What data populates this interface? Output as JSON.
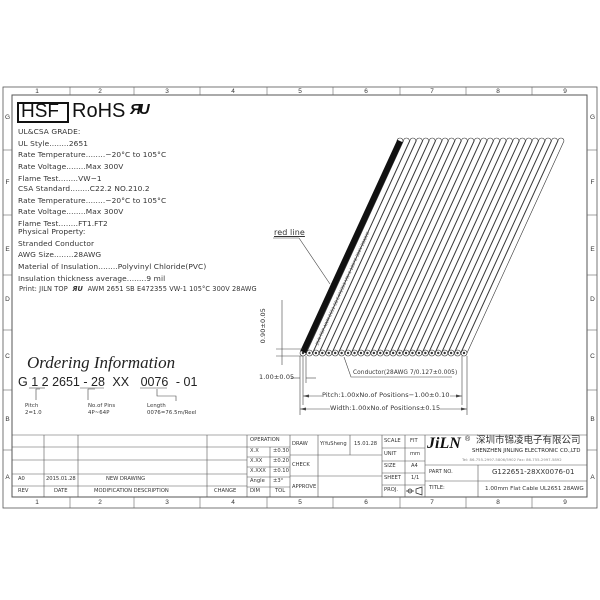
{
  "grid": {
    "columns": [
      "1",
      "2",
      "3",
      "4",
      "5",
      "6",
      "7",
      "8",
      "9"
    ],
    "rows": [
      "G",
      "F",
      "E",
      "D",
      "C",
      "B",
      "A"
    ]
  },
  "header": {
    "hsf": "HSF",
    "rohs": "RoHS",
    "ul_mark": "UL recognized component mark"
  },
  "specs": {
    "ul_grade": [
      "UL&CSA GRADE:",
      "UL Style........2651",
      "Rate Temperature........−20°C to 105°C",
      "Rate Voltage........Max 300V",
      "Flame Test........VW−1"
    ],
    "csa": [
      "CSA Standard........C22.2 NO.210.2",
      "Rate Temperature........−20°C to 105°C",
      "Rate Voltage........Max 300V",
      "Flame Test........FT1.FT2"
    ],
    "physical": [
      "Physical Property:",
      "Stranded Conductor",
      "AWG Size........28AWG",
      "Material of Insulation........Polyvinyl Chloride(PVC)",
      "Insulation thickness average........9 mil"
    ],
    "print_prefix": "Print: JILN TOP",
    "print_suffix": "AWM 2651 SB E472355 VW-1 105°C 300V 28AWG"
  },
  "drawing": {
    "red_line_label": "red line",
    "thickness_dim": "0.90±0.05",
    "pitch_dim": "1.00±0.05",
    "conductor_label": "Conductor(28AWG 7/0.127±0.005)",
    "pitch_total": "Pitch:1.00xNo.of Positions−1.00±0.10",
    "width_total": "Width:1.00xNo.of Positions±0.15",
    "cable_print": "JILN TOP AWM 2651 SB E472355 VW-1 105°C 300V 28AWG"
  },
  "ordering": {
    "title": "Ordering Information",
    "code": [
      "G 1",
      "2",
      "2651 - 28",
      "XX",
      "0076",
      "- 01"
    ],
    "pitch_label": "Pitch",
    "pitch_value": "2=1.0",
    "pins_label": "No.of Pins",
    "pins_value": "4P~64P",
    "length_label": "Length",
    "length_value": "0076=76.5m/Reel"
  },
  "revision": {
    "rev": "A0",
    "date": "2015.01.28",
    "description": "NEW DRAWING",
    "headers": [
      "REV",
      "DATE",
      "MODIFICATION DESCRIPTION",
      "CHANGE"
    ]
  },
  "tolerance": {
    "title": "OPERATION",
    "rows": [
      [
        "X.X",
        "±0.30"
      ],
      [
        "X.XX",
        "±0.20"
      ],
      [
        "X.XXX",
        "±0.10"
      ],
      [
        "Angle",
        "±3°"
      ]
    ],
    "footer": [
      "DIM",
      "TOL"
    ]
  },
  "approval": {
    "draw": "DRAW",
    "drawer": "YiYuSheng",
    "draw_date": "15.01.28",
    "check": "CHECK",
    "approve": "APPROVE"
  },
  "sheet": {
    "scale_label": "SCALE",
    "scale": "FIT",
    "unit_label": "UNIT",
    "unit": "mm",
    "size_label": "SIZE",
    "size": "A4",
    "sheet_label": "SHEET",
    "sheet": "1/1",
    "proj_label": "PROJ."
  },
  "company": {
    "logo": "JiLN",
    "name_cn": "深圳市锦凌电子有限公司",
    "name_en": "SHENZHEN JINLING ELECTRONIC CO.,LTD",
    "contact": "Tel: 86-755-2997-5806/5902   Fax: 86-755-2997-5892"
  },
  "part": {
    "label": "PART NO.",
    "number": "G122651-28XX0076-01",
    "title_label": "TITLE:",
    "title": "1.00mm Flat Cable UL2651 28AWG"
  }
}
